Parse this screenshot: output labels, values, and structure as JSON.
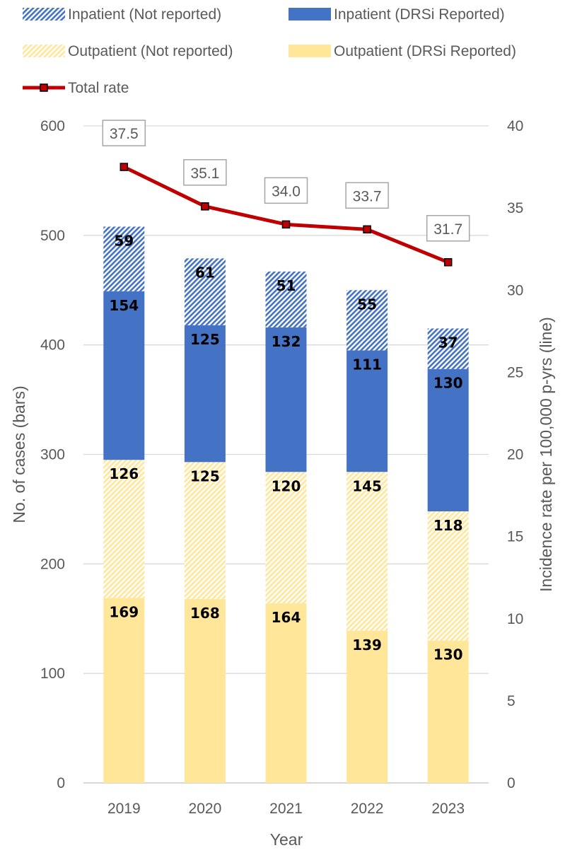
{
  "chart_data": {
    "type": "bar",
    "stacked": true,
    "xlabel": "Year",
    "ylabel": "No. of cases (bars)",
    "y2label": "Incidence rate per 100,000 p-yrs (line)",
    "categories": [
      "2019",
      "2020",
      "2021",
      "2022",
      "2023"
    ],
    "ylim": [
      0,
      600
    ],
    "yticks": [
      0,
      100,
      200,
      300,
      400,
      500,
      600
    ],
    "y2lim": [
      0,
      40
    ],
    "y2ticks": [
      0,
      5,
      10,
      15,
      20,
      25,
      30,
      35,
      40
    ],
    "grid": true,
    "legend_position": "top",
    "series": [
      {
        "name": "Outpatient (DRSi Reported)",
        "values": [
          169,
          168,
          164,
          139,
          130
        ],
        "color": "#FFE699",
        "pattern": "solid"
      },
      {
        "name": "Outpatient (Not reported)",
        "values": [
          126,
          125,
          120,
          145,
          118
        ],
        "color": "#FFE699",
        "pattern": "hatch"
      },
      {
        "name": "Inpatient (DRSi Reported)",
        "values": [
          154,
          125,
          132,
          111,
          130
        ],
        "color": "#4472C4",
        "pattern": "solid"
      },
      {
        "name": "Inpatient (Not reported)",
        "values": [
          59,
          61,
          51,
          55,
          37
        ],
        "color": "#4472C4",
        "pattern": "hatch"
      }
    ],
    "line": {
      "name": "Total rate",
      "axis": "secondary",
      "values": [
        37.5,
        35.1,
        34.0,
        33.7,
        31.7
      ],
      "labels": [
        "37.5",
        "35.1",
        "34.0",
        "33.7",
        "31.7"
      ],
      "color": "#C00000"
    },
    "legend": [
      {
        "name": "Inpatient (Not reported)",
        "color": "#4472C4",
        "pattern": "hatch"
      },
      {
        "name": "Inpatient (DRSi Reported)",
        "color": "#4472C4",
        "pattern": "solid"
      },
      {
        "name": "Outpatient (Not reported)",
        "color": "#FFE699",
        "pattern": "hatch"
      },
      {
        "name": "Outpatient (DRSi Reported)",
        "color": "#FFE699",
        "pattern": "solid"
      },
      {
        "name": "Total rate",
        "color": "#C00000",
        "pattern": "line"
      }
    ]
  }
}
